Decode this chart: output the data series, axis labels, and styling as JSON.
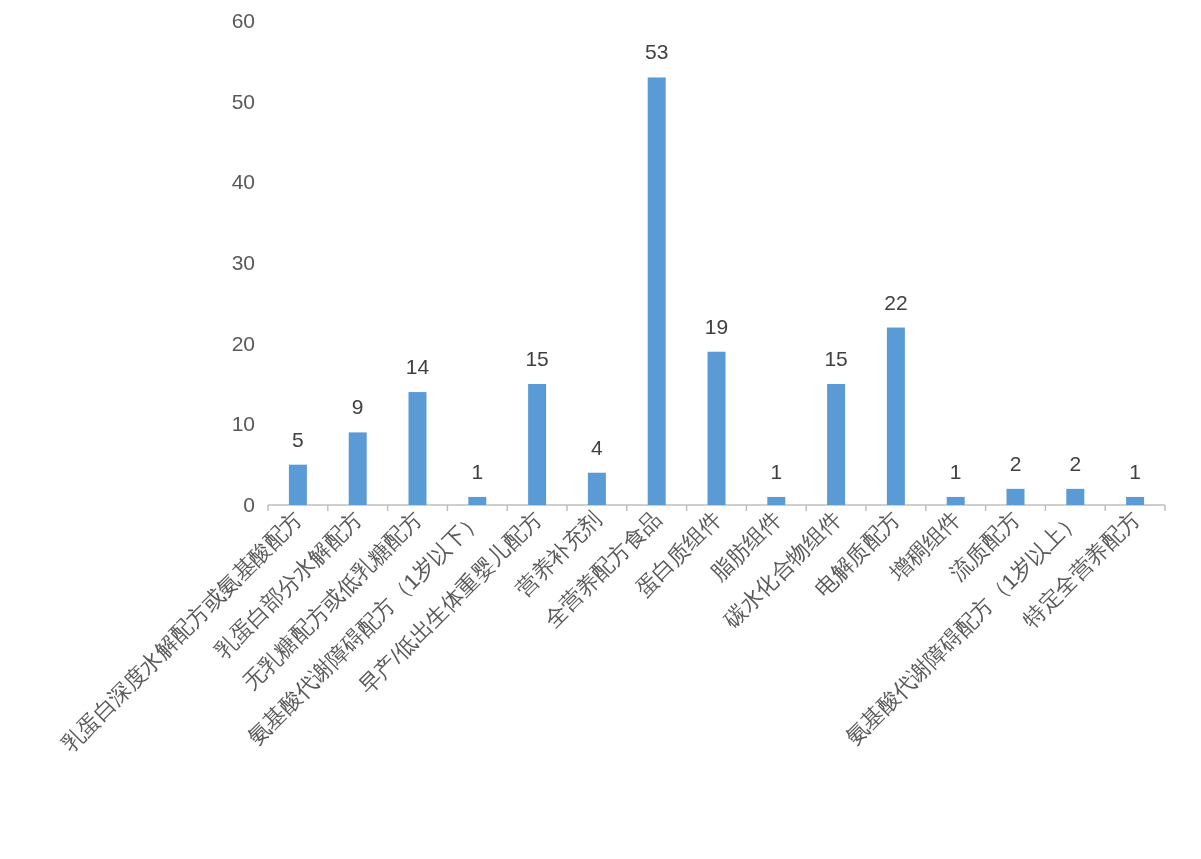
{
  "chart_data": {
    "type": "bar",
    "categories": [
      "乳蛋白深度水解配方或氨基酸配方",
      "乳蛋白部分水解配方",
      "无乳糖配方或低乳糖配方",
      "氨基酸代谢障碍配方（1岁以下）",
      "早产/低出生体重婴儿配方",
      "营养补充剂",
      "全营养配方食品",
      "蛋白质组件",
      "脂肪组件",
      "碳水化合物组件",
      "电解质配方",
      "增稠组件",
      "流质配方",
      "氨基酸代谢障碍配方（1岁以上）",
      "特定全营养配方"
    ],
    "values": [
      5,
      9,
      14,
      1,
      15,
      4,
      53,
      19,
      1,
      15,
      22,
      1,
      2,
      2,
      1
    ],
    "color": "#5b9bd5",
    "ylim": [
      0,
      60
    ],
    "yticks": [
      0,
      10,
      20,
      30,
      40,
      50,
      60
    ],
    "data_labels": true
  }
}
